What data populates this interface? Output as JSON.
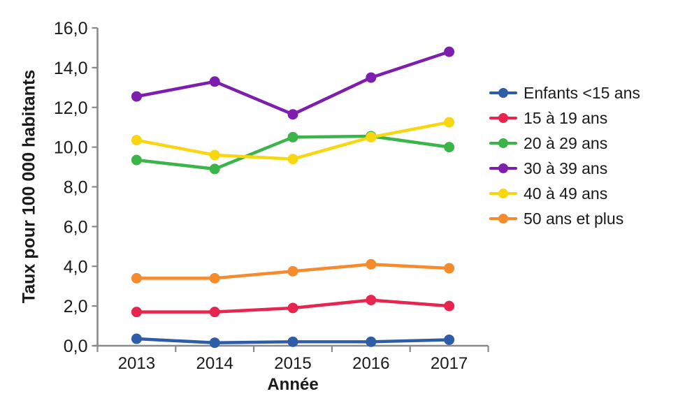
{
  "chart_data": {
    "type": "line",
    "title": "",
    "xlabel": "Année",
    "ylabel": "Taux pour 100 000 habitants",
    "categories": [
      "2013",
      "2014",
      "2015",
      "2016",
      "2017"
    ],
    "ylim": [
      0,
      16
    ],
    "ytick_step": 2,
    "ytick_labels": [
      "0,0",
      "2,0",
      "4,0",
      "6,0",
      "8,0",
      "10,0",
      "12,0",
      "14,0",
      "16,0"
    ],
    "grid": false,
    "legend_position": "right",
    "series": [
      {
        "name": "Enfants <15 ans",
        "color": "#2e5ca6",
        "values": [
          0.35,
          0.15,
          0.2,
          0.2,
          0.3
        ]
      },
      {
        "name": "15 à 19 ans",
        "color": "#e8254e",
        "values": [
          1.7,
          1.7,
          1.9,
          2.3,
          2.0
        ]
      },
      {
        "name": "20 à 29 ans",
        "color": "#3bb54a",
        "values": [
          9.35,
          8.9,
          10.5,
          10.55,
          10.0
        ]
      },
      {
        "name": "30 à 39 ans",
        "color": "#7d1eae",
        "values": [
          12.55,
          13.3,
          11.65,
          13.5,
          14.8
        ]
      },
      {
        "name": "40 à 49 ans",
        "color": "#f6d712",
        "values": [
          10.35,
          9.6,
          9.4,
          10.5,
          11.25
        ]
      },
      {
        "name": "50 ans et plus",
        "color": "#f68b2e",
        "values": [
          3.4,
          3.4,
          3.75,
          4.1,
          3.9
        ]
      }
    ]
  },
  "style": {
    "axis_color": "#8a8a8a",
    "text_color": "#1a1a1a",
    "marker_radius": 7.5
  }
}
